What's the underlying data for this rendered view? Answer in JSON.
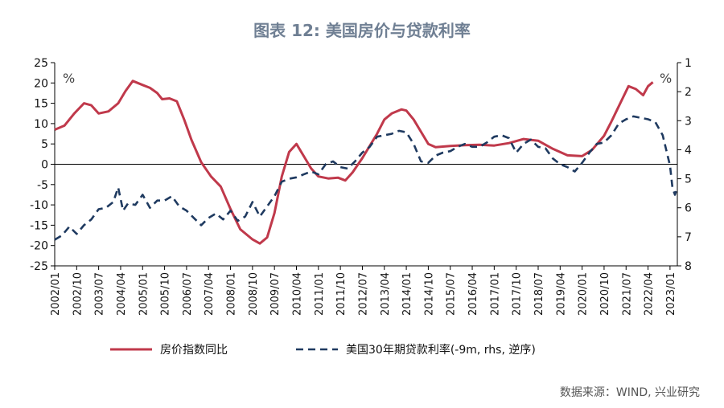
{
  "chart_data": {
    "type": "line",
    "title": "图表 12: 美国房价与贷款利率",
    "left_unit": "%",
    "right_unit": "%",
    "left_axis": {
      "min": -25,
      "max": 25,
      "ticks": [
        25,
        20,
        15,
        10,
        5,
        0,
        -5,
        -10,
        -15,
        -20,
        -25
      ]
    },
    "right_axis": {
      "min": 1,
      "max": 8,
      "inverted": true,
      "ticks": [
        1,
        2,
        3,
        4,
        5,
        6,
        7,
        8
      ]
    },
    "x_ticks": [
      "2002/01",
      "2002/10",
      "2003/07",
      "2004/04",
      "2005/01",
      "2005/10",
      "2006/07",
      "2007/04",
      "2008/01",
      "2008/10",
      "2009/07",
      "2010/04",
      "2011/01",
      "2011/10",
      "2012/07",
      "2013/04",
      "2014/01",
      "2014/10",
      "2015/07",
      "2016/04",
      "2017/01",
      "2017/10",
      "2018/07",
      "2019/04",
      "2020/01",
      "2020/10",
      "2021/07",
      "2022/04",
      "2023/01"
    ],
    "x_range": [
      "2002/01",
      "2023/04"
    ],
    "series": [
      {
        "name": "房价指数同比",
        "axis": "left",
        "color": "#c0394b",
        "style": "solid",
        "points": [
          [
            "2002/01",
            8.5
          ],
          [
            "2002/05",
            9.5
          ],
          [
            "2002/09",
            12.5
          ],
          [
            "2003/01",
            15
          ],
          [
            "2003/04",
            14.5
          ],
          [
            "2003/07",
            12.5
          ],
          [
            "2003/11",
            13
          ],
          [
            "2004/03",
            15
          ],
          [
            "2004/06",
            18
          ],
          [
            "2004/09",
            20.5
          ],
          [
            "2005/01",
            19.5
          ],
          [
            "2005/04",
            18.8
          ],
          [
            "2005/07",
            17.5
          ],
          [
            "2005/09",
            16
          ],
          [
            "2005/12",
            16.2
          ],
          [
            "2006/03",
            15.5
          ],
          [
            "2006/06",
            11
          ],
          [
            "2006/09",
            6
          ],
          [
            "2007/01",
            0.5
          ],
          [
            "2007/05",
            -3
          ],
          [
            "2007/09",
            -5.5
          ],
          [
            "2008/01",
            -11
          ],
          [
            "2008/05",
            -16
          ],
          [
            "2008/10",
            -18.5
          ],
          [
            "2009/01",
            -19.5
          ],
          [
            "2009/04",
            -18
          ],
          [
            "2009/07",
            -12
          ],
          [
            "2009/10",
            -3
          ],
          [
            "2010/01",
            3
          ],
          [
            "2010/04",
            5
          ],
          [
            "2010/07",
            2
          ],
          [
            "2010/10",
            -1
          ],
          [
            "2011/01",
            -3
          ],
          [
            "2011/05",
            -3.5
          ],
          [
            "2011/09",
            -3.3
          ],
          [
            "2011/12",
            -4
          ],
          [
            "2012/03",
            -2
          ],
          [
            "2012/07",
            1.5
          ],
          [
            "2012/10",
            4.5
          ],
          [
            "2013/01",
            7.5
          ],
          [
            "2013/04",
            11
          ],
          [
            "2013/07",
            12.5
          ],
          [
            "2013/11",
            13.5
          ],
          [
            "2014/01",
            13.2
          ],
          [
            "2014/04",
            11
          ],
          [
            "2014/07",
            8
          ],
          [
            "2014/10",
            5
          ],
          [
            "2015/01",
            4.2
          ],
          [
            "2015/07",
            4.5
          ],
          [
            "2016/01",
            4.7
          ],
          [
            "2016/07",
            4.8
          ],
          [
            "2017/01",
            4.6
          ],
          [
            "2017/07",
            5.2
          ],
          [
            "2018/01",
            6.2
          ],
          [
            "2018/07",
            5.8
          ],
          [
            "2019/01",
            3.8
          ],
          [
            "2019/07",
            2.2
          ],
          [
            "2020/01",
            2
          ],
          [
            "2020/05",
            3.5
          ],
          [
            "2020/10",
            7
          ],
          [
            "2021/01",
            10.5
          ],
          [
            "2021/05",
            15.5
          ],
          [
            "2021/08",
            19.2
          ],
          [
            "2021/11",
            18.5
          ],
          [
            "2022/02",
            17
          ],
          [
            "2022/04",
            19.2
          ],
          [
            "2022/06",
            20.2
          ]
        ]
      },
      {
        "name": "美国30年期贷款利率(-9m, rhs, 逆序)",
        "axis": "right",
        "color": "#1f3a60",
        "style": "dashed",
        "points": [
          [
            "2002/01",
            7.1
          ],
          [
            "2002/04",
            6.95
          ],
          [
            "2002/07",
            6.65
          ],
          [
            "2002/10",
            6.9
          ],
          [
            "2003/01",
            6.6
          ],
          [
            "2003/04",
            6.4
          ],
          [
            "2003/07",
            6.05
          ],
          [
            "2003/10",
            6.0
          ],
          [
            "2004/01",
            5.8
          ],
          [
            "2004/03",
            5.3
          ],
          [
            "2004/05",
            6.1
          ],
          [
            "2004/07",
            5.85
          ],
          [
            "2004/10",
            5.9
          ],
          [
            "2005/01",
            5.55
          ],
          [
            "2005/04",
            6.0
          ],
          [
            "2005/07",
            5.75
          ],
          [
            "2005/10",
            5.75
          ],
          [
            "2006/01",
            5.6
          ],
          [
            "2006/04",
            5.95
          ],
          [
            "2006/07",
            6.1
          ],
          [
            "2006/10",
            6.35
          ],
          [
            "2007/01",
            6.6
          ],
          [
            "2007/04",
            6.35
          ],
          [
            "2007/07",
            6.2
          ],
          [
            "2007/10",
            6.4
          ],
          [
            "2008/01",
            6.1
          ],
          [
            "2008/04",
            6.45
          ],
          [
            "2008/07",
            6.3
          ],
          [
            "2008/10",
            5.8
          ],
          [
            "2009/01",
            6.3
          ],
          [
            "2009/04",
            5.95
          ],
          [
            "2009/07",
            5.6
          ],
          [
            "2009/10",
            5.1
          ],
          [
            "2010/01",
            5.0
          ],
          [
            "2010/04",
            4.95
          ],
          [
            "2010/07",
            4.85
          ],
          [
            "2010/10",
            4.75
          ],
          [
            "2011/01",
            4.85
          ],
          [
            "2011/04",
            4.5
          ],
          [
            "2011/07",
            4.4
          ],
          [
            "2011/10",
            4.6
          ],
          [
            "2012/01",
            4.65
          ],
          [
            "2012/04",
            4.4
          ],
          [
            "2012/07",
            4.1
          ],
          [
            "2012/10",
            3.9
          ],
          [
            "2013/01",
            3.55
          ],
          [
            "2013/04",
            3.5
          ],
          [
            "2013/07",
            3.45
          ],
          [
            "2013/10",
            3.35
          ],
          [
            "2014/01",
            3.4
          ],
          [
            "2014/04",
            3.8
          ],
          [
            "2014/07",
            4.4
          ],
          [
            "2014/10",
            4.45
          ],
          [
            "2015/01",
            4.2
          ],
          [
            "2015/04",
            4.1
          ],
          [
            "2015/07",
            4.05
          ],
          [
            "2015/10",
            3.9
          ],
          [
            "2016/01",
            3.8
          ],
          [
            "2016/04",
            3.9
          ],
          [
            "2016/07",
            3.9
          ],
          [
            "2016/10",
            3.75
          ],
          [
            "2017/01",
            3.55
          ],
          [
            "2017/04",
            3.5
          ],
          [
            "2017/07",
            3.6
          ],
          [
            "2017/10",
            4.1
          ],
          [
            "2018/01",
            3.8
          ],
          [
            "2018/04",
            3.65
          ],
          [
            "2018/07",
            3.9
          ],
          [
            "2018/10",
            3.95
          ],
          [
            "2019/01",
            4.3
          ],
          [
            "2019/04",
            4.5
          ],
          [
            "2019/07",
            4.6
          ],
          [
            "2019/10",
            4.75
          ],
          [
            "2020/01",
            4.45
          ],
          [
            "2020/04",
            4.1
          ],
          [
            "2020/07",
            3.8
          ],
          [
            "2020/10",
            3.75
          ],
          [
            "2021/01",
            3.5
          ],
          [
            "2021/04",
            3.1
          ],
          [
            "2021/07",
            2.95
          ],
          [
            "2021/10",
            2.85
          ],
          [
            "2022/01",
            2.9
          ],
          [
            "2022/04",
            2.95
          ],
          [
            "2022/07",
            3.05
          ],
          [
            "2022/10",
            3.5
          ],
          [
            "2023/01",
            4.55
          ],
          [
            "2023/02",
            5.3
          ],
          [
            "2023/03",
            5.55
          ],
          [
            "2023/04",
            5.3
          ]
        ]
      }
    ]
  },
  "source": "数据来源：WIND, 兴业研究"
}
